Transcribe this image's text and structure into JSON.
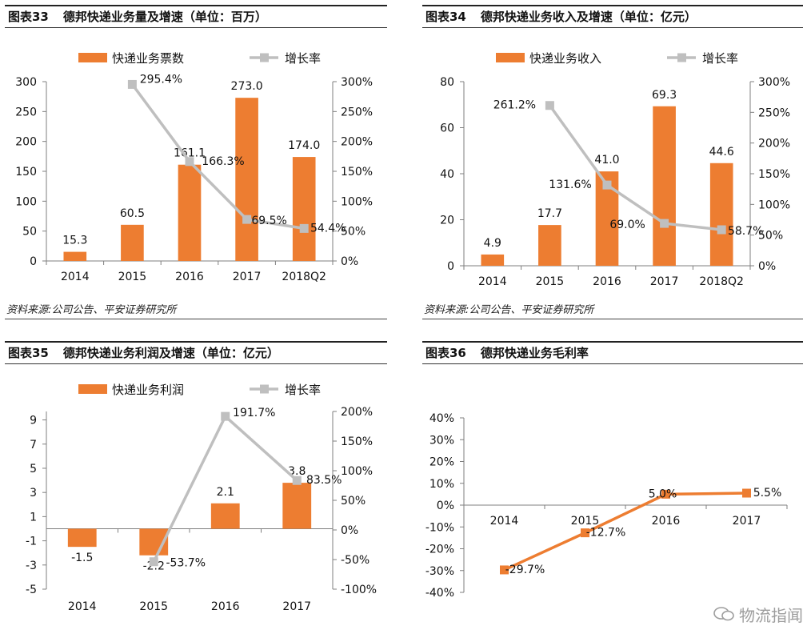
{
  "colors": {
    "bar": "#ED7D31",
    "line": "#BFBFBF",
    "line_orange": "#ED7D31",
    "axis": "#7F7F7F"
  },
  "panels": [
    {
      "num": "图表33",
      "title": "德邦快递业务量及增速（单位：百万）",
      "source": "资料来源:公司公告、平安证券研究所",
      "chart_data": {
        "type": "bar",
        "categories": [
          "2014",
          "2015",
          "2016",
          "2017",
          "2018Q2"
        ],
        "series": [
          {
            "name": "快递业务票数",
            "type": "bar",
            "axis": "left",
            "values": [
              15.3,
              60.5,
              161.1,
              273.0,
              174.0
            ],
            "labels": [
              "15.3",
              "60.5",
              "161.1",
              "273.0",
              "174.0"
            ]
          },
          {
            "name": "增长率",
            "type": "line",
            "axis": "right",
            "values": [
              null,
              295.4,
              166.3,
              69.5,
              54.4
            ],
            "labels": [
              "",
              "295.4%",
              "166.3%",
              "69.5%",
              "54.4%"
            ]
          }
        ],
        "y_left": {
          "min": 0,
          "max": 300,
          "ticks": [
            "0",
            "50",
            "100",
            "150",
            "200",
            "250",
            "300"
          ],
          "tick_values": [
            0,
            50,
            100,
            150,
            200,
            250,
            300
          ]
        },
        "y_right": {
          "min": 0,
          "max": 300,
          "ticks": [
            "0%",
            "50%",
            "100%",
            "150%",
            "200%",
            "250%",
            "300%"
          ],
          "tick_values": [
            0,
            50,
            100,
            150,
            200,
            250,
            300
          ]
        },
        "legend": "top"
      }
    },
    {
      "num": "图表34",
      "title": "德邦快递业务收入及增速（单位：亿元）",
      "source": "资料来源:公司公告、平安证券研究所",
      "chart_data": {
        "type": "bar",
        "categories": [
          "2014",
          "2015",
          "2016",
          "2017",
          "2018Q2"
        ],
        "series": [
          {
            "name": "快递业务收入",
            "type": "bar",
            "axis": "left",
            "values": [
              4.9,
              17.7,
              41.0,
              69.3,
              44.6
            ],
            "labels": [
              "4.9",
              "17.7",
              "41.0",
              "69.3",
              "44.6"
            ]
          },
          {
            "name": "增长率",
            "type": "line",
            "axis": "right",
            "values": [
              null,
              261.2,
              131.6,
              69.0,
              58.7
            ],
            "labels": [
              "",
              "261.2%",
              "131.6%",
              "69.0%",
              "58.7%"
            ]
          }
        ],
        "y_left": {
          "min": 0,
          "max": 80,
          "ticks": [
            "0",
            "20",
            "40",
            "60",
            "80"
          ],
          "tick_values": [
            0,
            20,
            40,
            60,
            80
          ]
        },
        "y_right": {
          "min": 0,
          "max": 300,
          "ticks": [
            "0%",
            "50%",
            "100%",
            "150%",
            "200%",
            "250%",
            "300%"
          ],
          "tick_values": [
            0,
            50,
            100,
            150,
            200,
            250,
            300
          ]
        },
        "legend": "top"
      }
    },
    {
      "num": "图表35",
      "title": "德邦快递业务利润及增速（单位：亿元）",
      "chart_data": {
        "type": "bar",
        "categories": [
          "2014",
          "2015",
          "2016",
          "2017"
        ],
        "series": [
          {
            "name": "快递业务利润",
            "type": "bar",
            "axis": "left",
            "values": [
              -1.5,
              -2.2,
              2.1,
              3.8
            ],
            "labels": [
              "-1.5",
              "-2.2",
              "2.1",
              "3.8"
            ]
          },
          {
            "name": "增长率",
            "type": "line",
            "axis": "right",
            "values": [
              null,
              -53.7,
              191.7,
              83.5
            ],
            "labels": [
              "",
              "-53.7%",
              "191.7%",
              "83.5%"
            ]
          }
        ],
        "y_left": {
          "min": -5,
          "max": 9.7,
          "ticks": [
            "-5",
            "-3",
            "-1",
            "1",
            "3",
            "5",
            "7",
            "9"
          ],
          "tick_values": [
            -5,
            -3,
            -1,
            1,
            3,
            5,
            7,
            9
          ]
        },
        "y_right": {
          "min": -100,
          "max": 200,
          "ticks": [
            "-100%",
            "-50%",
            "0%",
            "50%",
            "100%",
            "150%",
            "200%"
          ],
          "tick_values": [
            -100,
            -50,
            0,
            50,
            100,
            150,
            200
          ]
        },
        "legend": "top"
      }
    },
    {
      "num": "图表36",
      "title": "德邦快递业务毛利率",
      "chart_data": {
        "type": "line",
        "categories": [
          "2014",
          "2015",
          "2016",
          "2017"
        ],
        "series": [
          {
            "type": "line",
            "axis": "left",
            "values": [
              -29.7,
              -12.7,
              5.0,
              5.5
            ],
            "labels": [
              "-29.7%",
              "-12.7%",
              "5.0%",
              "5.5%"
            ]
          }
        ],
        "y_left": {
          "min": -40,
          "max": 40,
          "ticks": [
            "-40%",
            "-30%",
            "-20%",
            "-10%",
            "0%",
            "10%",
            "20%",
            "30%",
            "40%"
          ],
          "tick_values": [
            -40,
            -30,
            -20,
            -10,
            0,
            10,
            20,
            30,
            40
          ]
        },
        "legend": "none"
      }
    }
  ],
  "watermark": "物流指闻"
}
